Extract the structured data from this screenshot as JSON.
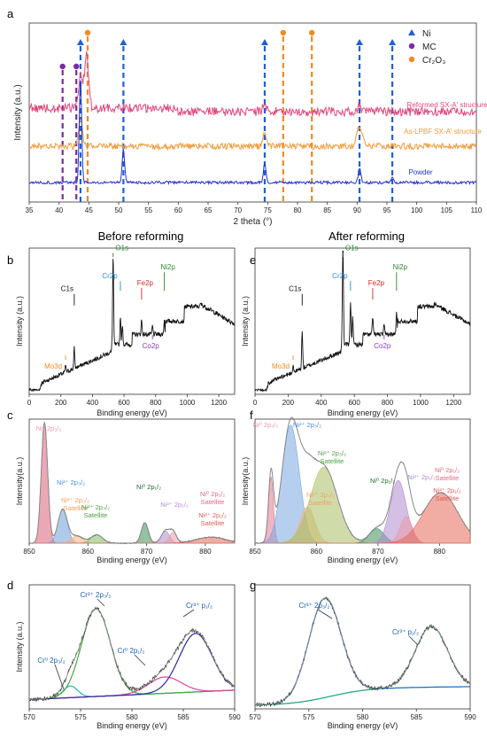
{
  "panel_letters": [
    "a",
    "b",
    "c",
    "d",
    "e",
    "f",
    "g"
  ],
  "headers": {
    "before": "Before reforming",
    "after": "After reforming"
  },
  "colors": {
    "ni": "#1f5fd6",
    "mc": "#7a2aa6",
    "cr2o3": "#f08a24",
    "reformed": "#e2487a",
    "aslpbf": "#f29a3a",
    "powder": "#2233cc"
  },
  "chart_data": [
    {
      "id": "a",
      "type": "line",
      "xlabel": "2 theta (°)",
      "ylabel": "Intensity (a.u.)",
      "xlim": [
        35,
        110
      ],
      "xticks": [
        35,
        40,
        45,
        50,
        55,
        60,
        65,
        70,
        75,
        80,
        85,
        90,
        95,
        100,
        105,
        110
      ],
      "legend": [
        {
          "label": "Ni",
          "marker": "triangle",
          "color": "#1f5fd6"
        },
        {
          "label": "MC",
          "marker": "circle",
          "color": "#7a2aa6"
        },
        {
          "label": "Cr₂O₃",
          "marker": "circle",
          "color": "#f08a24"
        }
      ],
      "legend_position": "top-right",
      "reference_lines": [
        {
          "phase": "Ni",
          "x": [
            43.6,
            50.8,
            74.5,
            90.4,
            95.9
          ]
        },
        {
          "phase": "MC",
          "x": [
            40.6,
            42.9
          ]
        },
        {
          "phase": "Cr₂O₃",
          "x": [
            44.8,
            77.6,
            82.4
          ]
        }
      ],
      "series": [
        {
          "name": "Reformed SX-A' structure",
          "peaks": [
            [
              43.6,
              14
            ],
            [
              44.6,
              18
            ],
            [
              74.5,
              1.5
            ],
            [
              90.4,
              1.2
            ]
          ]
        },
        {
          "name": "As-LPBF SX-A' structure",
          "peaks": [
            [
              43.6,
              16
            ],
            [
              74.5,
              2.5
            ],
            [
              90.4,
              6
            ]
          ]
        },
        {
          "name": "Powder",
          "peaks": [
            [
              43.6,
              30
            ],
            [
              50.8,
              9
            ],
            [
              74.5,
              5
            ],
            [
              90.4,
              3.5
            ],
            [
              95.9,
              1.2
            ]
          ]
        }
      ]
    },
    {
      "id": "b",
      "type": "line",
      "xlabel": "Binding energy (eV)",
      "ylabel": "Intensity (a.u.)",
      "xlim": [
        0,
        1300
      ],
      "xticks": [
        0,
        200,
        400,
        600,
        800,
        1000,
        1200
      ],
      "annotations": [
        {
          "text": "O1s",
          "x": 531,
          "color": "#2a8a2a"
        },
        {
          "text": "C1s",
          "x": 285,
          "color": "#111111"
        },
        {
          "text": "Cr2p",
          "x": 577,
          "color": "#1e8ed6"
        },
        {
          "text": "Fe2p",
          "x": 711,
          "color": "#e02020"
        },
        {
          "text": "Ni2p",
          "x": 855,
          "color": "#2a8a2a"
        },
        {
          "text": "Co2p",
          "x": 780,
          "color": "#8a3ab9"
        },
        {
          "text": "Mo3d",
          "x": 230,
          "color": "#f08a24"
        }
      ]
    },
    {
      "id": "e",
      "type": "line",
      "xlabel": "Binding energy (eV)",
      "ylabel": "Intensity (a.u.)",
      "xlim": [
        0,
        1300
      ],
      "xticks": [
        0,
        200,
        400,
        600,
        800,
        1000,
        1200
      ],
      "annotations": [
        {
          "text": "O1s",
          "x": 531,
          "color": "#2a8a2a"
        },
        {
          "text": "C1s",
          "x": 285,
          "color": "#111111"
        },
        {
          "text": "Cr2p",
          "x": 577,
          "color": "#1e8ed6"
        },
        {
          "text": "Fe2p",
          "x": 711,
          "color": "#e02020"
        },
        {
          "text": "Ni2p",
          "x": 855,
          "color": "#2a8a2a"
        },
        {
          "text": "Co2p",
          "x": 780,
          "color": "#8a3ab9"
        },
        {
          "text": "Mo3d",
          "x": 230,
          "color": "#f08a24"
        }
      ]
    },
    {
      "id": "c",
      "type": "area",
      "xlabel": "Binding energy (eV)",
      "ylabel": "Intensity(a.u.)",
      "xlim": [
        850,
        885
      ],
      "xticks": [
        850,
        860,
        870,
        880
      ],
      "components": [
        {
          "label": "Ni⁰ 2p₃/₂",
          "center": 852.6,
          "height": 1.0,
          "width": 0.55,
          "color": "#d9607a"
        },
        {
          "label": "Ni²⁺ 2p₃/₂",
          "center": 855.7,
          "height": 0.28,
          "width": 0.8,
          "color": "#6f9fd8"
        },
        {
          "label": "Ni²⁺ 2p₃/₂ Satellite",
          "center": 858.2,
          "height": 0.06,
          "width": 1.0,
          "color": "#f2b07a"
        },
        {
          "label": "Ni²⁺ 2p₃/₂ Satellite",
          "center": 861.5,
          "height": 0.07,
          "width": 1.0,
          "color": "#7cbf5a"
        },
        {
          "label": "Ni⁰ 2p₁/₂",
          "center": 869.7,
          "height": 0.17,
          "width": 0.6,
          "color": "#3f8f5a"
        },
        {
          "label": "Ni²⁺ 2p₁/₂",
          "center": 873.2,
          "height": 0.1,
          "width": 0.7,
          "color": "#b08ad0"
        },
        {
          "label": "Ni⁰ 2p₁/₂ Satellite",
          "center": 874.5,
          "height": 0.09,
          "width": 0.6,
          "color": "#e89aa8"
        },
        {
          "label": "Ni²⁺ 2p₁/₂ Satellite",
          "center": 881.0,
          "height": 0.05,
          "width": 2.5,
          "color": "#e56a5a"
        }
      ]
    },
    {
      "id": "f",
      "type": "area",
      "xlabel": "Binding energy (eV)",
      "ylabel": "Intensity(a.u.)",
      "xlim": [
        850,
        885
      ],
      "xticks": [
        850,
        860,
        870,
        880
      ],
      "components": [
        {
          "label": "Ni⁰ 2p₃/₂",
          "center": 852.6,
          "height": 0.55,
          "width": 0.4,
          "color": "#e27a90"
        },
        {
          "label": "Ni²⁺ 2p₃/₂",
          "center": 855.8,
          "height": 0.98,
          "width": 1.4,
          "color": "#7aa8e0"
        },
        {
          "label": "Ni²⁺ 2p₃/₂ Satellite",
          "center": 858.5,
          "height": 0.3,
          "width": 1.2,
          "color": "#f2b07a"
        },
        {
          "label": "Ni²⁺ 2p₃/₂ Satellite",
          "center": 861.2,
          "height": 0.63,
          "width": 2.2,
          "color": "#a8bf64"
        },
        {
          "label": "Ni⁰ 2p₁/₂",
          "center": 869.8,
          "height": 0.12,
          "width": 1.2,
          "color": "#3f8f5a"
        },
        {
          "label": "Ni²⁺ 2p₁/₂",
          "center": 873.3,
          "height": 0.52,
          "width": 1.3,
          "color": "#b08ad0"
        },
        {
          "label": "Ni⁰ 2p₁/₂ Satellite",
          "center": 874.6,
          "height": 0.22,
          "width": 1.0,
          "color": "#e89aa8"
        },
        {
          "label": "Ni²⁺ 2p₁/₂ Satellite",
          "center": 880.2,
          "height": 0.42,
          "width": 2.8,
          "color": "#e56a5a"
        }
      ]
    },
    {
      "id": "d",
      "type": "line",
      "xlabel": "Binding energy (eV)",
      "ylabel": "Intensity (a.u.)",
      "xlim": [
        570,
        590
      ],
      "xticks": [
        570,
        575,
        580,
        585,
        590
      ],
      "components": [
        {
          "label": "Cr⁰ 2p₃/₂",
          "center": 574.0,
          "height": 0.1,
          "width": 0.7,
          "color": "#22b8a8"
        },
        {
          "label": "Cr³⁺ 2p₃/₂",
          "center": 576.5,
          "height": 0.75,
          "width": 1.4,
          "color": "#3fae3f"
        },
        {
          "label": "Cr⁰ 2p₁/₂",
          "center": 583.2,
          "height": 0.14,
          "width": 1.6,
          "color": "#e040a0"
        },
        {
          "label": "Cr³⁺ p₁/₂",
          "center": 586.2,
          "height": 0.5,
          "width": 1.6,
          "color": "#2a2aa8"
        }
      ]
    },
    {
      "id": "g",
      "type": "line",
      "xlabel": "Binding energy (eV)",
      "ylabel": "",
      "xlim": [
        570,
        590
      ],
      "xticks": [
        570,
        575,
        580,
        585,
        590
      ],
      "components": [
        {
          "label": "Cr³⁺ 2p₃/₂",
          "center": 576.5,
          "height": 0.85,
          "width": 1.5,
          "color": "#1e6fd0"
        },
        {
          "label": "Cr³⁺ p₁/₂",
          "center": 586.4,
          "height": 0.52,
          "width": 1.5,
          "color": "#2aa87a"
        }
      ]
    }
  ]
}
